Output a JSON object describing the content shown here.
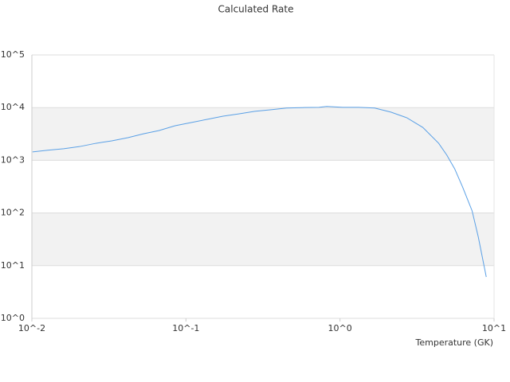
{
  "chart_data": {
    "type": "line",
    "title": "Calculated Rate",
    "x_label": "Temperature (GK)",
    "x_log": true,
    "y_log": true,
    "grid": true,
    "alternate_bands": true,
    "band_color": "#f2f2f2",
    "xlim": [
      0.01,
      10
    ],
    "ylim": [
      1,
      100000
    ],
    "xticks": [
      {
        "value": 0.01,
        "label": "10^-2"
      },
      {
        "value": 0.1,
        "label": "10^-1"
      },
      {
        "value": 1,
        "label": "10^0"
      },
      {
        "value": 10,
        "label": "10^1"
      }
    ],
    "yticks": [
      {
        "value": 1,
        "label": "10^0"
      },
      {
        "value": 10,
        "label": "10^1"
      },
      {
        "value": 100,
        "label": "10^2"
      },
      {
        "value": 1000,
        "label": "10^3"
      },
      {
        "value": 10000,
        "label": "10^4"
      },
      {
        "value": 100000,
        "label": "10^5"
      }
    ],
    "series": [
      {
        "color": "#5aa0e6",
        "x": [
          0.0101,
          0.0127,
          0.0161,
          0.0204,
          0.026,
          0.033,
          0.042,
          0.053,
          0.067,
          0.085,
          0.108,
          0.137,
          0.174,
          0.22,
          0.28,
          0.357,
          0.45,
          0.57,
          0.73,
          0.82,
          1.04,
          1.32,
          1.68,
          2.14,
          2.72,
          3.45,
          4.37,
          4.93,
          5.55,
          6.25,
          7.2,
          7.9,
          8.9
        ],
        "values": [
          1440,
          1550,
          1660,
          1820,
          2100,
          2340,
          2690,
          3180,
          3670,
          4520,
          5200,
          5970,
          6870,
          7600,
          8500,
          9100,
          9800,
          10000,
          10100,
          10500,
          10100,
          10100,
          9800,
          8200,
          6400,
          4200,
          2100,
          1260,
          690,
          310,
          110,
          35,
          6.1
        ]
      }
    ]
  }
}
